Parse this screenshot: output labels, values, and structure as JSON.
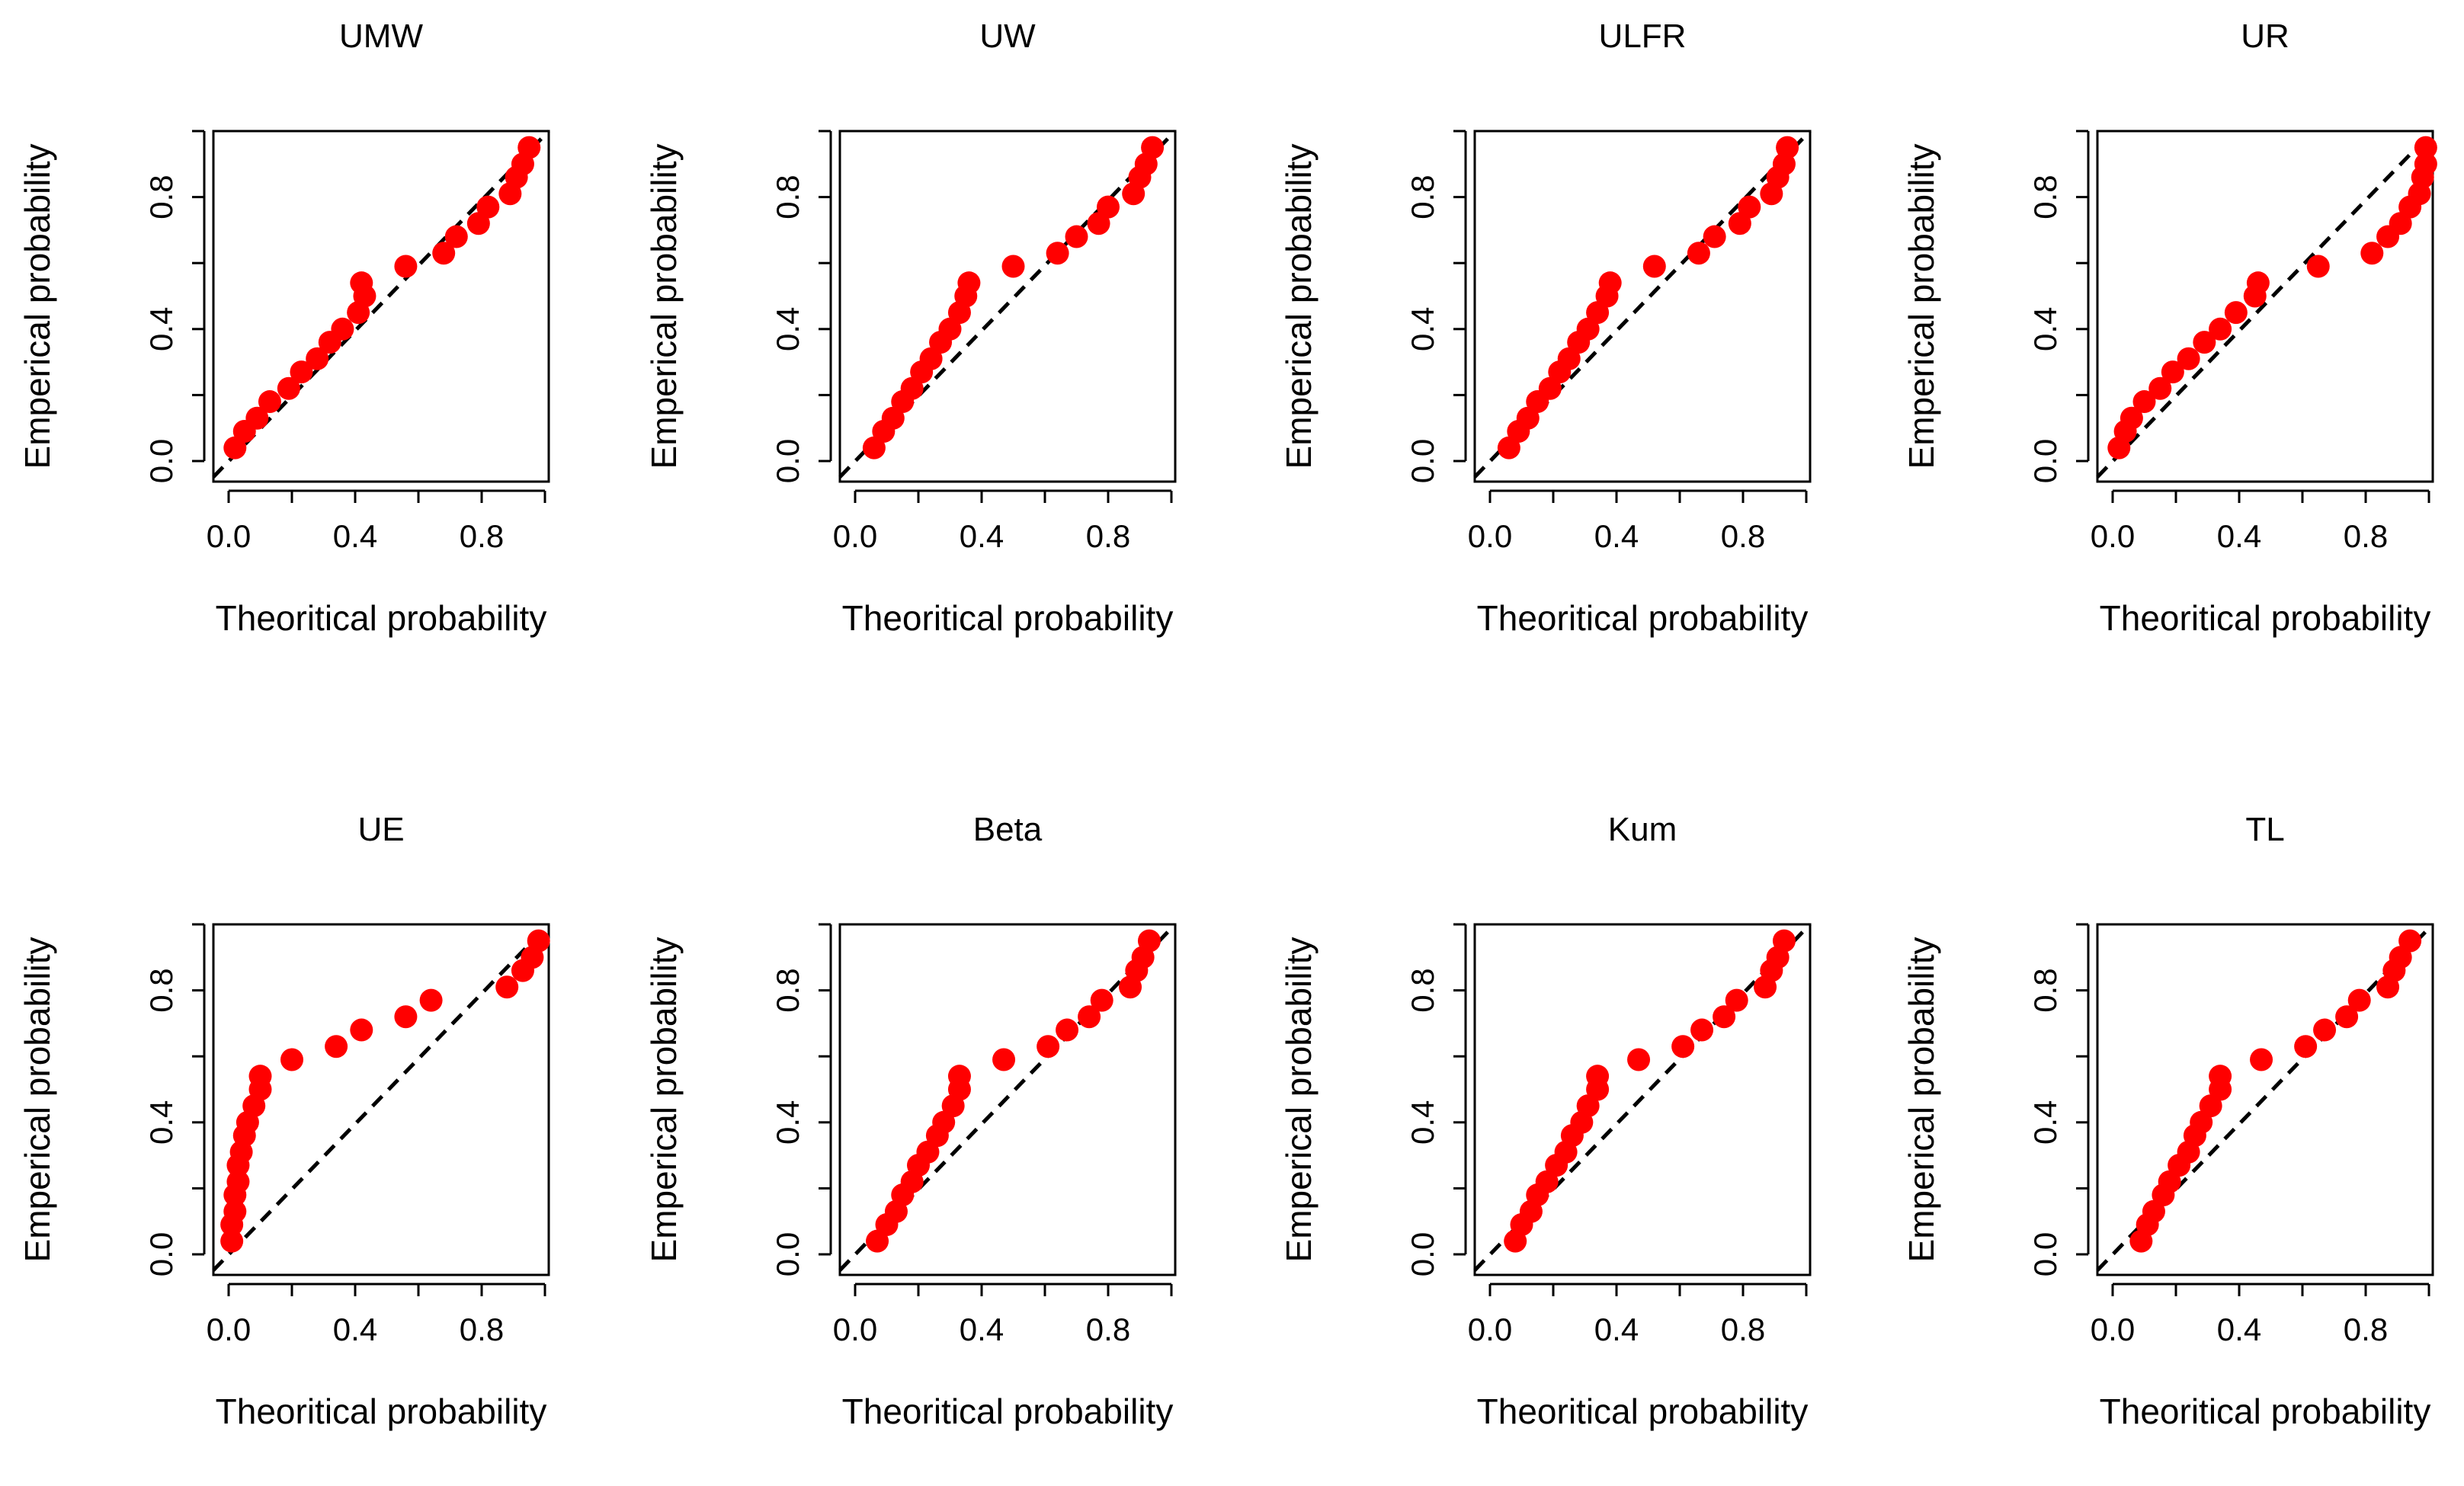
{
  "figure": {
    "point_color": "#ff0000",
    "reference_line_color": "#000000",
    "layout": "2 rows x 4 columns"
  },
  "chart_data": [
    {
      "type": "scatter",
      "title": "UMW",
      "xlabel": "Theoritical probability",
      "ylabel": "Emperical probability",
      "xlim": [
        0,
        1
      ],
      "ylim": [
        0,
        1
      ],
      "x_ticks": [
        0.0,
        0.4,
        0.8
      ],
      "y_ticks": [
        0.0,
        0.4,
        0.8
      ],
      "x_tick_labels": [
        "0.0",
        "0.4",
        "0.8"
      ],
      "y_tick_labels": [
        "0.0",
        "0.4",
        "0.8"
      ],
      "reference_line": "y = x (dashed)",
      "x": [
        0.02,
        0.05,
        0.09,
        0.13,
        0.19,
        0.23,
        0.28,
        0.32,
        0.36,
        0.41,
        0.43,
        0.42,
        0.56,
        0.68,
        0.72,
        0.79,
        0.82,
        0.89,
        0.91,
        0.93,
        0.95
      ],
      "y": [
        0.04,
        0.09,
        0.13,
        0.18,
        0.22,
        0.27,
        0.31,
        0.36,
        0.4,
        0.45,
        0.5,
        0.54,
        0.59,
        0.63,
        0.68,
        0.72,
        0.77,
        0.81,
        0.86,
        0.9,
        0.95
      ]
    },
    {
      "type": "scatter",
      "title": "UW",
      "xlabel": "Theoritical probability",
      "ylabel": "Emperical probability",
      "xlim": [
        0,
        1
      ],
      "ylim": [
        0,
        1
      ],
      "x_ticks": [
        0.0,
        0.4,
        0.8
      ],
      "y_ticks": [
        0.0,
        0.4,
        0.8
      ],
      "x_tick_labels": [
        "0.0",
        "0.4",
        "0.8"
      ],
      "y_tick_labels": [
        "0.0",
        "0.4",
        "0.8"
      ],
      "reference_line": "y = x (dashed)",
      "x": [
        0.06,
        0.09,
        0.12,
        0.15,
        0.18,
        0.21,
        0.24,
        0.27,
        0.3,
        0.33,
        0.35,
        0.36,
        0.5,
        0.64,
        0.7,
        0.77,
        0.8,
        0.88,
        0.9,
        0.92,
        0.94
      ],
      "y": [
        0.04,
        0.09,
        0.13,
        0.18,
        0.22,
        0.27,
        0.31,
        0.36,
        0.4,
        0.45,
        0.5,
        0.54,
        0.59,
        0.63,
        0.68,
        0.72,
        0.77,
        0.81,
        0.86,
        0.9,
        0.95
      ]
    },
    {
      "type": "scatter",
      "title": "ULFR",
      "xlabel": "Theoritical probability",
      "ylabel": "Emperical probability",
      "xlim": [
        0,
        1
      ],
      "ylim": [
        0,
        1
      ],
      "x_ticks": [
        0.0,
        0.4,
        0.8
      ],
      "y_ticks": [
        0.0,
        0.4,
        0.8
      ],
      "x_tick_labels": [
        "0.0",
        "0.4",
        "0.8"
      ],
      "y_tick_labels": [
        "0.0",
        "0.4",
        "0.8"
      ],
      "reference_line": "y = x (dashed)",
      "x": [
        0.06,
        0.09,
        0.12,
        0.15,
        0.19,
        0.22,
        0.25,
        0.28,
        0.31,
        0.34,
        0.37,
        0.38,
        0.52,
        0.66,
        0.71,
        0.79,
        0.82,
        0.89,
        0.91,
        0.93,
        0.94
      ],
      "y": [
        0.04,
        0.09,
        0.13,
        0.18,
        0.22,
        0.27,
        0.31,
        0.36,
        0.4,
        0.45,
        0.5,
        0.54,
        0.59,
        0.63,
        0.68,
        0.72,
        0.77,
        0.81,
        0.86,
        0.9,
        0.95
      ]
    },
    {
      "type": "scatter",
      "title": "UR",
      "xlabel": "Theoritical probability",
      "ylabel": "Emperical probability",
      "xlim": [
        0,
        1
      ],
      "ylim": [
        0,
        1
      ],
      "x_ticks": [
        0.0,
        0.4,
        0.8
      ],
      "y_ticks": [
        0.0,
        0.4,
        0.8
      ],
      "x_tick_labels": [
        "0.0",
        "0.4",
        "0.8"
      ],
      "y_tick_labels": [
        "0.0",
        "0.4",
        "0.8"
      ],
      "reference_line": "y = x (dashed)",
      "x": [
        0.02,
        0.04,
        0.06,
        0.1,
        0.15,
        0.19,
        0.24,
        0.29,
        0.34,
        0.39,
        0.45,
        0.46,
        0.65,
        0.82,
        0.87,
        0.91,
        0.94,
        0.97,
        0.98,
        0.99,
        0.99
      ],
      "y": [
        0.04,
        0.09,
        0.13,
        0.18,
        0.22,
        0.27,
        0.31,
        0.36,
        0.4,
        0.45,
        0.5,
        0.54,
        0.59,
        0.63,
        0.68,
        0.72,
        0.77,
        0.81,
        0.86,
        0.9,
        0.95
      ]
    },
    {
      "type": "scatter",
      "title": "UE",
      "xlabel": "Theoritical probability",
      "ylabel": "Emperical probability",
      "xlim": [
        0,
        1
      ],
      "ylim": [
        0,
        1
      ],
      "x_ticks": [
        0.0,
        0.4,
        0.8
      ],
      "y_ticks": [
        0.0,
        0.4,
        0.8
      ],
      "x_tick_labels": [
        "0.0",
        "0.4",
        "0.8"
      ],
      "y_tick_labels": [
        "0.0",
        "0.4",
        "0.8"
      ],
      "reference_line": "y = x (dashed)",
      "x": [
        0.01,
        0.01,
        0.02,
        0.02,
        0.03,
        0.03,
        0.04,
        0.05,
        0.06,
        0.08,
        0.1,
        0.1,
        0.2,
        0.34,
        0.42,
        0.56,
        0.64,
        0.88,
        0.93,
        0.96,
        0.98
      ],
      "y": [
        0.04,
        0.09,
        0.13,
        0.18,
        0.22,
        0.27,
        0.31,
        0.36,
        0.4,
        0.45,
        0.5,
        0.54,
        0.59,
        0.63,
        0.68,
        0.72,
        0.77,
        0.81,
        0.86,
        0.9,
        0.95
      ]
    },
    {
      "type": "scatter",
      "title": "Beta",
      "xlabel": "Theoritical probability",
      "ylabel": "Emperical probability",
      "xlim": [
        0,
        1
      ],
      "ylim": [
        0,
        1
      ],
      "x_ticks": [
        0.0,
        0.4,
        0.8
      ],
      "y_ticks": [
        0.0,
        0.4,
        0.8
      ],
      "x_tick_labels": [
        "0.0",
        "0.4",
        "0.8"
      ],
      "y_tick_labels": [
        "0.0",
        "0.4",
        "0.8"
      ],
      "reference_line": "y = x (dashed)",
      "x": [
        0.07,
        0.1,
        0.13,
        0.15,
        0.18,
        0.2,
        0.23,
        0.26,
        0.28,
        0.31,
        0.33,
        0.33,
        0.47,
        0.61,
        0.67,
        0.74,
        0.78,
        0.87,
        0.89,
        0.91,
        0.93
      ],
      "y": [
        0.04,
        0.09,
        0.13,
        0.18,
        0.22,
        0.27,
        0.31,
        0.36,
        0.4,
        0.45,
        0.5,
        0.54,
        0.59,
        0.63,
        0.68,
        0.72,
        0.77,
        0.81,
        0.86,
        0.9,
        0.95
      ]
    },
    {
      "type": "scatter",
      "title": "Kum",
      "xlabel": "Theoritical probability",
      "ylabel": "Emperical probability",
      "xlim": [
        0,
        1
      ],
      "ylim": [
        0,
        1
      ],
      "x_ticks": [
        0.0,
        0.4,
        0.8
      ],
      "y_ticks": [
        0.0,
        0.4,
        0.8
      ],
      "x_tick_labels": [
        "0.0",
        "0.4",
        "0.8"
      ],
      "y_tick_labels": [
        "0.0",
        "0.4",
        "0.8"
      ],
      "reference_line": "y = x (dashed)",
      "x": [
        0.08,
        0.1,
        0.13,
        0.15,
        0.18,
        0.21,
        0.24,
        0.26,
        0.29,
        0.31,
        0.34,
        0.34,
        0.47,
        0.61,
        0.67,
        0.74,
        0.78,
        0.87,
        0.89,
        0.91,
        0.93
      ],
      "y": [
        0.04,
        0.09,
        0.13,
        0.18,
        0.22,
        0.27,
        0.31,
        0.36,
        0.4,
        0.45,
        0.5,
        0.54,
        0.59,
        0.63,
        0.68,
        0.72,
        0.77,
        0.81,
        0.86,
        0.9,
        0.95
      ]
    },
    {
      "type": "scatter",
      "title": "TL",
      "xlabel": "Theoritical probability",
      "ylabel": "Emperical probability",
      "xlim": [
        0,
        1
      ],
      "ylim": [
        0,
        1
      ],
      "x_ticks": [
        0.0,
        0.4,
        0.8
      ],
      "y_ticks": [
        0.0,
        0.4,
        0.8
      ],
      "x_tick_labels": [
        "0.0",
        "0.4",
        "0.8"
      ],
      "y_tick_labels": [
        "0.0",
        "0.4",
        "0.8"
      ],
      "reference_line": "y = x (dashed)",
      "x": [
        0.09,
        0.11,
        0.13,
        0.16,
        0.18,
        0.21,
        0.24,
        0.26,
        0.28,
        0.31,
        0.34,
        0.34,
        0.47,
        0.61,
        0.67,
        0.74,
        0.78,
        0.87,
        0.89,
        0.91,
        0.94
      ],
      "y": [
        0.04,
        0.09,
        0.13,
        0.18,
        0.22,
        0.27,
        0.31,
        0.36,
        0.4,
        0.45,
        0.5,
        0.54,
        0.59,
        0.63,
        0.68,
        0.72,
        0.77,
        0.81,
        0.86,
        0.9,
        0.95
      ]
    }
  ]
}
